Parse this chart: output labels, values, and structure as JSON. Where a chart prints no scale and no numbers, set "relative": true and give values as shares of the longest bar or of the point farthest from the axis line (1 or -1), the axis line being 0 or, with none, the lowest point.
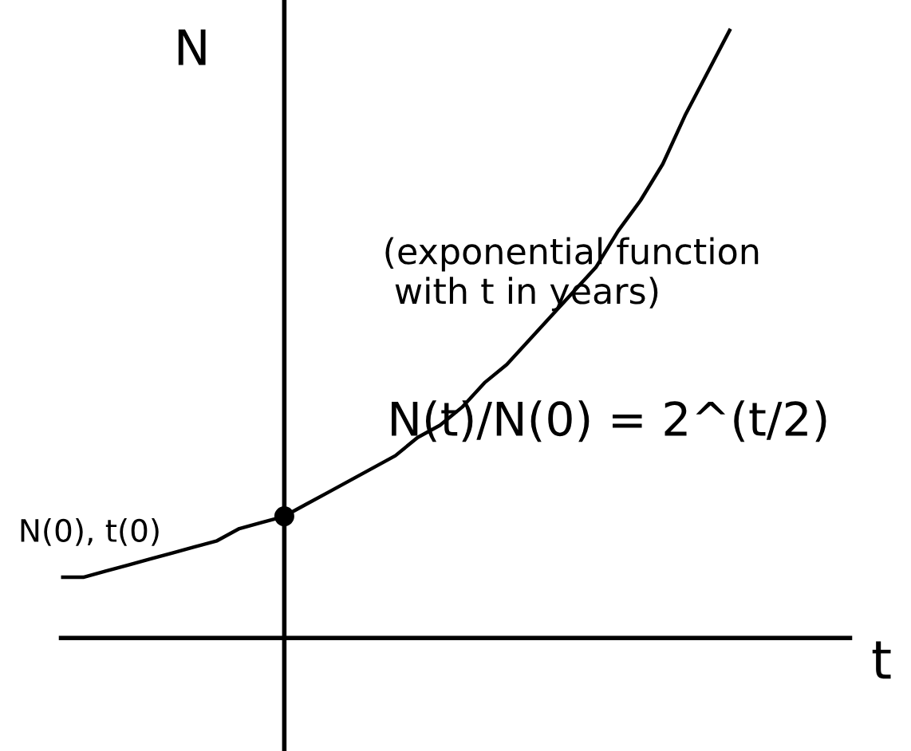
{
  "chart_data": {
    "type": "line",
    "relative": true,
    "xlabel": "t",
    "ylabel": "N",
    "annotations": [
      "(exponential function\n with t in years)",
      "N(t)/N(0) = 2^(t/2)",
      "N(0), t(0)"
    ],
    "categories": [
      null,
      null,
      null,
      null,
      null,
      null,
      null,
      null,
      null,
      null,
      null,
      null,
      null,
      null,
      null,
      null,
      null,
      null,
      null,
      null,
      null,
      null,
      null,
      null,
      null,
      null,
      null,
      null,
      null,
      null,
      null
    ],
    "series": [
      {
        "color": "#000000",
        "values": [
          0.1,
          0.1,
          0.11,
          0.12,
          0.13,
          0.14,
          0.15,
          0.16,
          0.18,
          0.19,
          0.2,
          0.22,
          0.24,
          0.26,
          0.28,
          0.3,
          0.33,
          0.35,
          0.38,
          0.42,
          0.45,
          0.49,
          0.53,
          0.57,
          0.61,
          0.67,
          0.72,
          0.78,
          0.86,
          0.93,
          1
        ]
      }
    ]
  }
}
